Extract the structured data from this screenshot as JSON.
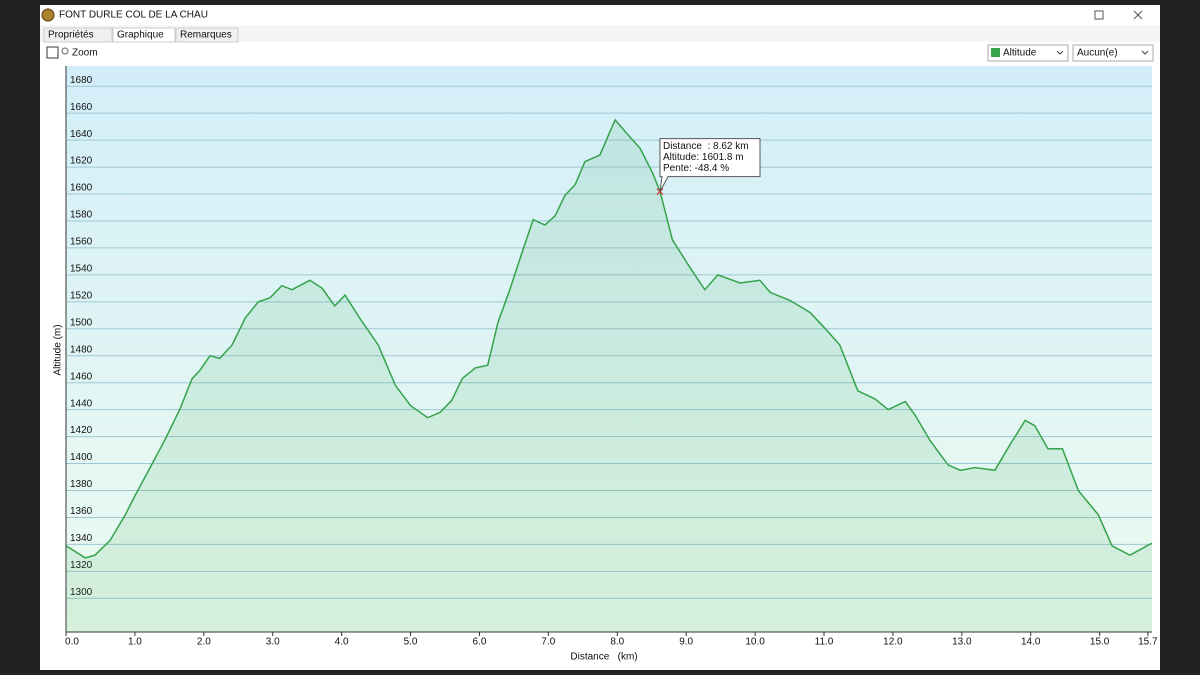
{
  "window": {
    "title": "FONT DURLE COL DE LA CHAU",
    "tabs": [
      "Propriétés",
      "Graphique",
      "Remarques"
    ],
    "zoom_label": "Zoom",
    "second_dropdown": "Aucun(e)"
  },
  "chart_data": {
    "type": "area-line",
    "x_label": "Distance   (km)",
    "y_label": "Altitude (m)",
    "x": [
      0,
      0.28,
      0.42,
      0.64,
      0.86,
      1.0,
      1.22,
      1.44,
      1.65,
      1.83,
      1.94,
      2.09,
      2.23,
      2.41,
      2.6,
      2.79,
      2.96,
      3.13,
      3.28,
      3.54,
      3.72,
      3.9,
      4.05,
      4.26,
      4.53,
      4.78,
      5.0,
      5.25,
      5.43,
      5.6,
      5.75,
      5.94,
      6.12,
      6.27,
      6.44,
      6.62,
      6.78,
      6.95,
      7.1,
      7.24,
      7.39,
      7.53,
      7.75,
      7.9,
      7.97,
      8.12,
      8.33,
      8.51,
      8.62,
      8.8,
      9.06,
      9.27,
      9.46,
      9.78,
      10.07,
      10.22,
      10.51,
      10.8,
      11.02,
      11.23,
      11.49,
      11.74,
      11.93,
      12.18,
      12.32,
      12.54,
      12.8,
      12.98,
      13.19,
      13.48,
      13.7,
      13.92,
      14.06,
      14.25,
      14.46,
      14.69,
      14.98,
      15.18,
      15.44,
      15.76
    ],
    "series": [
      {
        "name": "Altitude",
        "color": "#34a34a",
        "values": [
          1339,
          1330,
          1332,
          1343,
          1362,
          1376,
          1397,
          1418,
          1440,
          1463,
          1469,
          1480,
          1478,
          1488,
          1508,
          1520,
          1523,
          1532,
          1529,
          1536,
          1530,
          1517,
          1525,
          1508,
          1488,
          1458,
          1443,
          1434,
          1438,
          1447,
          1463,
          1471,
          1473,
          1505,
          1529,
          1557,
          1581,
          1577,
          1584,
          1599,
          1607,
          1624,
          1629,
          1647,
          1655,
          1646,
          1634,
          1616,
          1602,
          1566,
          1545,
          1529,
          1540,
          1534,
          1536,
          1527,
          1521,
          1512,
          1500,
          1488,
          1454,
          1448,
          1440,
          1446,
          1436,
          1417,
          1399,
          1395,
          1397,
          1395,
          1414,
          1432,
          1428,
          1411,
          1411,
          1380,
          1362,
          1339,
          1332,
          1341
        ]
      }
    ],
    "xlim": [
      0,
      15.76
    ],
    "ylim": [
      1275,
      1695
    ],
    "xticks": [
      {
        "value": 0,
        "label": "0.0"
      },
      {
        "value": 1,
        "label": "1.0"
      },
      {
        "value": 2,
        "label": "2.0"
      },
      {
        "value": 3,
        "label": "3.0"
      },
      {
        "value": 4,
        "label": "4.0"
      },
      {
        "value": 5,
        "label": "5.0"
      },
      {
        "value": 6,
        "label": "6.0"
      },
      {
        "value": 7,
        "label": "7.0"
      },
      {
        "value": 8,
        "label": "8.0"
      },
      {
        "value": 9,
        "label": "9.0"
      },
      {
        "value": 10,
        "label": "10.0"
      },
      {
        "value": 11,
        "label": "11.0"
      },
      {
        "value": 12,
        "label": "12.0"
      },
      {
        "value": 13,
        "label": "13.0"
      },
      {
        "value": 14,
        "label": "14.0"
      },
      {
        "value": 15,
        "label": "15.0"
      },
      {
        "value": 15.7,
        "label": "15.7"
      }
    ],
    "yticks": [
      1300,
      1320,
      1340,
      1360,
      1380,
      1400,
      1420,
      1440,
      1460,
      1480,
      1500,
      1520,
      1540,
      1560,
      1580,
      1600,
      1620,
      1640,
      1660,
      1680
    ],
    "grid": true,
    "marker": {
      "x": 8.62,
      "y": 1601.8
    },
    "tooltip": [
      "Distance  : 8.62 km",
      "Altitude: 1601.8 m",
      "Pente: -48.4 %"
    ]
  }
}
